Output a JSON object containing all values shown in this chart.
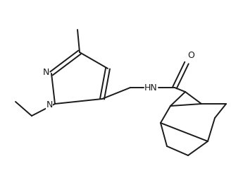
{
  "bg_color": "#ffffff",
  "line_color": "#1a1a1a",
  "lw": 1.4,
  "font_size": 8.5,
  "figsize": [
    3.45,
    2.52
  ],
  "dpi": 100,
  "xlim": [
    0,
    345
  ],
  "ylim": [
    0,
    252
  ]
}
